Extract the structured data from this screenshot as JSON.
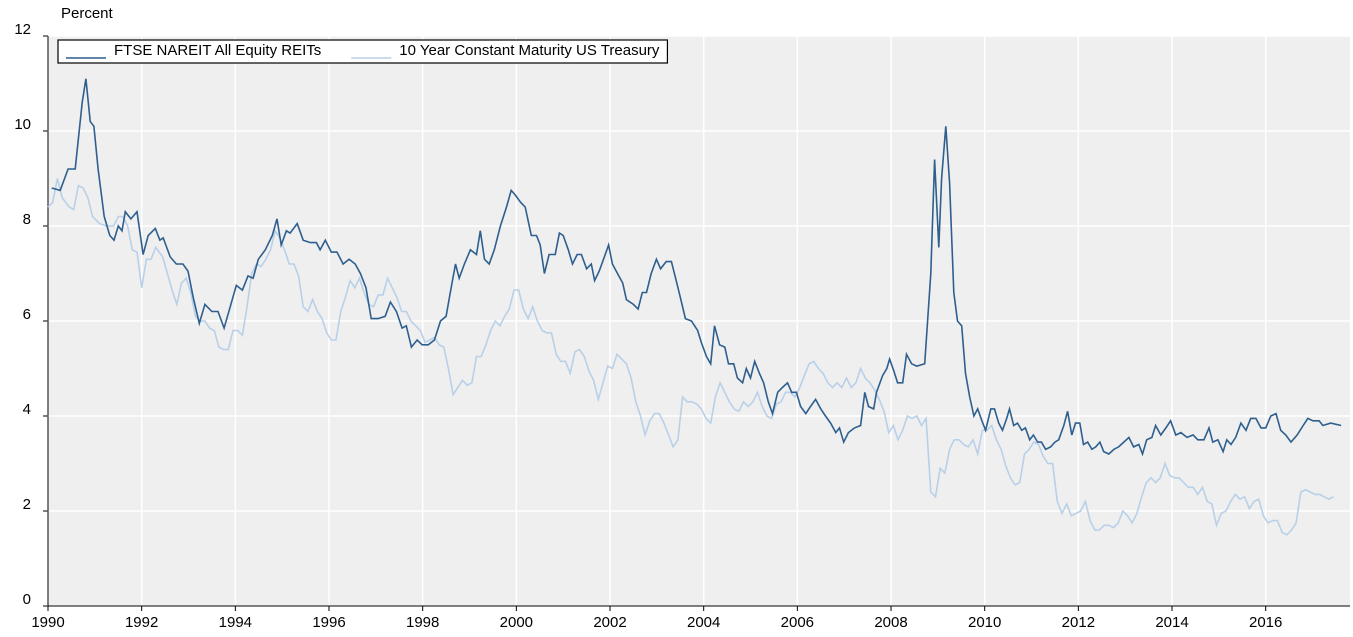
{
  "chart_data": {
    "type": "line",
    "y_label": "Percent",
    "xlim": [
      1990,
      2017.8
    ],
    "xticks": [
      1990,
      1992,
      1994,
      1996,
      1998,
      2000,
      2002,
      2004,
      2006,
      2008,
      2010,
      2012,
      2014,
      2016
    ],
    "ylim": [
      0,
      12
    ],
    "yticks": [
      0,
      2,
      4,
      6,
      8,
      10,
      12
    ],
    "grid": true,
    "legend": "top left",
    "series": [
      {
        "name": "FTSE NAREIT All Equity REITs",
        "color": "#2e5f8e",
        "x": [
          1990.08,
          1990.26,
          1990.43,
          1990.58,
          1990.73,
          1990.81,
          1990.9,
          1990.98,
          1991.07,
          1991.2,
          1991.32,
          1991.41,
          1991.5,
          1991.58,
          1991.65,
          1991.77,
          1991.9,
          1992.03,
          1992.14,
          1992.29,
          1992.39,
          1992.46,
          1992.61,
          1992.74,
          1992.88,
          1992.99,
          1993.1,
          1993.23,
          1993.35,
          1993.5,
          1993.63,
          1993.76,
          1993.89,
          1994.02,
          1994.15,
          1994.27,
          1994.38,
          1994.49,
          1994.64,
          1994.79,
          1994.89,
          1994.98,
          1995.09,
          1995.17,
          1995.32,
          1995.45,
          1995.6,
          1995.73,
          1995.81,
          1995.92,
          1996.05,
          1996.17,
          1996.3,
          1996.43,
          1996.56,
          1996.67,
          1996.79,
          1996.9,
          1997.05,
          1997.2,
          1997.31,
          1997.44,
          1997.56,
          1997.65,
          1997.76,
          1997.88,
          1997.99,
          1998.12,
          1998.25,
          1998.38,
          1998.5,
          1998.59,
          1998.7,
          1998.78,
          1998.89,
          1999.02,
          1999.15,
          1999.23,
          1999.32,
          1999.42,
          1999.53,
          1999.66,
          1999.79,
          1999.89,
          1999.98,
          2000.09,
          2000.19,
          2000.32,
          2000.43,
          2000.51,
          2000.6,
          2000.7,
          2000.83,
          2000.92,
          2001.0,
          2001.11,
          2001.2,
          2001.3,
          2001.39,
          2001.5,
          2001.6,
          2001.67,
          2001.77,
          2001.86,
          2001.97,
          2002.05,
          2002.16,
          2002.27,
          2002.35,
          2002.5,
          2002.6,
          2002.69,
          2002.78,
          2002.88,
          2002.99,
          2003.08,
          2003.2,
          2003.31,
          2003.4,
          2003.5,
          2003.61,
          2003.74,
          2003.87,
          2003.95,
          2004.06,
          2004.15,
          2004.23,
          2004.34,
          2004.45,
          2004.53,
          2004.64,
          2004.72,
          2004.83,
          2004.91,
          2005.0,
          2005.09,
          2005.19,
          2005.28,
          2005.38,
          2005.47,
          2005.58,
          2005.68,
          2005.79,
          2005.88,
          2005.98,
          2006.07,
          2006.18,
          2006.28,
          2006.39,
          2006.5,
          2006.6,
          2006.71,
          2006.82,
          2006.9,
          2006.99,
          2007.09,
          2007.22,
          2007.35,
          2007.44,
          2007.52,
          2007.63,
          2007.69,
          2007.82,
          2007.91,
          2007.97,
          2008.06,
          2008.14,
          2008.25,
          2008.33,
          2008.44,
          2008.55,
          2008.72,
          2008.85,
          2008.93,
          2009.02,
          2009.08,
          2009.17,
          2009.25,
          2009.34,
          2009.42,
          2009.51,
          2009.59,
          2009.68,
          2009.77,
          2009.85,
          2009.94,
          2010.02,
          2010.13,
          2010.21,
          2010.3,
          2010.38,
          2010.47,
          2010.53,
          2010.62,
          2010.7,
          2010.79,
          2010.87,
          2010.96,
          2011.04,
          2011.13,
          2011.21,
          2011.3,
          2011.41,
          2011.5,
          2011.58,
          2011.69,
          2011.77,
          2011.86,
          2011.94,
          2012.03,
          2012.11,
          2012.2,
          2012.29,
          2012.37,
          2012.46,
          2012.54,
          2012.65,
          2012.76,
          2012.86,
          2012.97,
          2013.08,
          2013.18,
          2013.29,
          2013.37,
          2013.46,
          2013.57,
          2013.65,
          2013.76,
          2013.87,
          2013.97,
          2014.08,
          2014.19,
          2014.32,
          2014.45,
          2014.55,
          2014.68,
          2014.79,
          2014.87,
          2014.98,
          2015.09,
          2015.17,
          2015.26,
          2015.36,
          2015.47,
          2015.58,
          2015.68,
          2015.79,
          2015.9,
          2016.0,
          2016.11,
          2016.22,
          2016.32,
          2016.43,
          2016.54,
          2016.67,
          2016.8,
          2016.9,
          2017.01,
          2017.14,
          2017.22,
          2017.39,
          2017.61
        ],
        "values": [
          8.8,
          8.75,
          9.2,
          9.2,
          10.6,
          11.1,
          10.2,
          10.1,
          9.2,
          8.2,
          7.8,
          7.7,
          8.0,
          7.9,
          8.3,
          8.15,
          8.3,
          7.4,
          7.8,
          7.95,
          7.7,
          7.75,
          7.35,
          7.2,
          7.2,
          7.05,
          6.5,
          5.95,
          6.35,
          6.2,
          6.2,
          5.85,
          6.3,
          6.75,
          6.65,
          6.95,
          6.9,
          7.3,
          7.5,
          7.8,
          8.15,
          7.6,
          7.9,
          7.85,
          8.05,
          7.7,
          7.65,
          7.65,
          7.5,
          7.7,
          7.45,
          7.45,
          7.2,
          7.3,
          7.2,
          7.0,
          6.7,
          6.05,
          6.05,
          6.1,
          6.4,
          6.2,
          5.85,
          5.9,
          5.45,
          5.6,
          5.5,
          5.5,
          5.6,
          6.0,
          6.1,
          6.6,
          7.2,
          6.9,
          7.2,
          7.5,
          7.4,
          7.9,
          7.3,
          7.2,
          7.5,
          8.0,
          8.4,
          8.75,
          8.65,
          8.5,
          8.4,
          7.8,
          7.8,
          7.6,
          7.0,
          7.4,
          7.4,
          7.85,
          7.8,
          7.5,
          7.2,
          7.4,
          7.4,
          7.1,
          7.2,
          6.85,
          7.05,
          7.3,
          7.6,
          7.2,
          7.0,
          6.8,
          6.45,
          6.35,
          6.25,
          6.6,
          6.6,
          7.0,
          7.3,
          7.1,
          7.25,
          7.25,
          6.9,
          6.5,
          6.05,
          6.0,
          5.8,
          5.55,
          5.25,
          5.1,
          5.9,
          5.5,
          5.45,
          5.1,
          5.1,
          4.8,
          4.7,
          5.0,
          4.8,
          5.15,
          4.9,
          4.7,
          4.3,
          4.05,
          4.5,
          4.6,
          4.7,
          4.5,
          4.5,
          4.2,
          4.05,
          4.2,
          4.35,
          4.15,
          4.0,
          3.85,
          3.65,
          3.75,
          3.45,
          3.65,
          3.75,
          3.8,
          4.5,
          4.2,
          4.15,
          4.5,
          4.85,
          5.0,
          5.2,
          4.95,
          4.7,
          4.7,
          5.3,
          5.1,
          5.05,
          5.1,
          7.0,
          9.4,
          7.55,
          9.0,
          10.1,
          8.9,
          6.6,
          6.0,
          5.9,
          4.9,
          4.4,
          4.0,
          4.15,
          3.9,
          3.7,
          4.15,
          4.15,
          3.85,
          3.7,
          3.95,
          4.15,
          3.8,
          3.85,
          3.7,
          3.75,
          3.5,
          3.6,
          3.45,
          3.45,
          3.3,
          3.35,
          3.45,
          3.5,
          3.8,
          4.1,
          3.6,
          3.85,
          3.85,
          3.4,
          3.45,
          3.3,
          3.35,
          3.45,
          3.25,
          3.2,
          3.3,
          3.35,
          3.45,
          3.55,
          3.35,
          3.4,
          3.2,
          3.5,
          3.55,
          3.8,
          3.6,
          3.75,
          3.9,
          3.6,
          3.65,
          3.55,
          3.6,
          3.5,
          3.5,
          3.75,
          3.45,
          3.5,
          3.25,
          3.5,
          3.4,
          3.55,
          3.85,
          3.7,
          3.95,
          3.95,
          3.75,
          3.75,
          4.0,
          4.05,
          3.7,
          3.6,
          3.45,
          3.6,
          3.8,
          3.95,
          3.9,
          3.9,
          3.8,
          3.85,
          3.8
        ]
      },
      {
        "name": "10 Year Constant Maturity US Treasury",
        "color": "#b8d0e8",
        "x": [
          1990.0,
          1990.1,
          1990.2,
          1990.3,
          1990.45,
          1990.55,
          1990.65,
          1990.75,
          1990.85,
          1990.95,
          1991.1,
          1991.25,
          1991.4,
          1991.5,
          1991.6,
          1991.7,
          1991.8,
          1991.9,
          1992.0,
          1992.1,
          1992.2,
          1992.3,
          1992.45,
          1992.55,
          1992.65,
          1992.75,
          1992.85,
          1992.95,
          1993.05,
          1993.15,
          1993.25,
          1993.35,
          1993.45,
          1993.55,
          1993.65,
          1993.75,
          1993.85,
          1993.95,
          1994.05,
          1994.15,
          1994.25,
          1994.35,
          1994.45,
          1994.55,
          1994.65,
          1994.75,
          1994.85,
          1994.95,
          1995.05,
          1995.15,
          1995.25,
          1995.35,
          1995.45,
          1995.55,
          1995.65,
          1995.75,
          1995.85,
          1995.95,
          1996.05,
          1996.15,
          1996.25,
          1996.35,
          1996.45,
          1996.55,
          1996.65,
          1996.75,
          1996.85,
          1996.95,
          1997.05,
          1997.15,
          1997.25,
          1997.35,
          1997.45,
          1997.55,
          1997.65,
          1997.75,
          1997.85,
          1997.95,
          1998.05,
          1998.15,
          1998.25,
          1998.35,
          1998.45,
          1998.55,
          1998.65,
          1998.75,
          1998.85,
          1998.95,
          1999.05,
          1999.15,
          1999.25,
          1999.35,
          1999.45,
          1999.55,
          1999.65,
          1999.75,
          1999.85,
          1999.95,
          2000.05,
          2000.15,
          2000.25,
          2000.35,
          2000.45,
          2000.55,
          2000.65,
          2000.75,
          2000.85,
          2000.95,
          2001.05,
          2001.15,
          2001.25,
          2001.35,
          2001.45,
          2001.55,
          2001.65,
          2001.75,
          2001.85,
          2001.95,
          2002.05,
          2002.15,
          2002.25,
          2002.35,
          2002.45,
          2002.55,
          2002.65,
          2002.75,
          2002.85,
          2002.95,
          2003.05,
          2003.15,
          2003.25,
          2003.35,
          2003.45,
          2003.55,
          2003.65,
          2003.75,
          2003.85,
          2003.95,
          2004.05,
          2004.15,
          2004.25,
          2004.35,
          2004.45,
          2004.55,
          2004.65,
          2004.75,
          2004.85,
          2004.95,
          2005.05,
          2005.15,
          2005.25,
          2005.35,
          2005.45,
          2005.55,
          2005.65,
          2005.75,
          2005.85,
          2005.95,
          2006.05,
          2006.15,
          2006.25,
          2006.35,
          2006.45,
          2006.55,
          2006.65,
          2006.75,
          2006.85,
          2006.95,
          2007.05,
          2007.15,
          2007.25,
          2007.35,
          2007.45,
          2007.55,
          2007.65,
          2007.75,
          2007.85,
          2007.95,
          2008.05,
          2008.15,
          2008.25,
          2008.35,
          2008.45,
          2008.55,
          2008.65,
          2008.75,
          2008.85,
          2008.95,
          2009.05,
          2009.15,
          2009.25,
          2009.35,
          2009.45,
          2009.55,
          2009.65,
          2009.75,
          2009.85,
          2009.95,
          2010.05,
          2010.15,
          2010.25,
          2010.35,
          2010.45,
          2010.55,
          2010.65,
          2010.75,
          2010.85,
          2010.95,
          2011.05,
          2011.15,
          2011.25,
          2011.35,
          2011.45,
          2011.55,
          2011.65,
          2011.75,
          2011.85,
          2011.95,
          2012.05,
          2012.15,
          2012.25,
          2012.35,
          2012.45,
          2012.55,
          2012.65,
          2012.75,
          2012.85,
          2012.95,
          2013.05,
          2013.15,
          2013.25,
          2013.35,
          2013.45,
          2013.55,
          2013.65,
          2013.75,
          2013.85,
          2013.95,
          2014.05,
          2014.15,
          2014.25,
          2014.35,
          2014.45,
          2014.55,
          2014.65,
          2014.75,
          2014.85,
          2014.95,
          2015.05,
          2015.15,
          2015.25,
          2015.35,
          2015.45,
          2015.55,
          2015.65,
          2015.75,
          2015.85,
          2015.95,
          2016.05,
          2016.15,
          2016.25,
          2016.35,
          2016.45,
          2016.55,
          2016.65,
          2016.75,
          2016.85,
          2016.95,
          2017.05,
          2017.15,
          2017.25,
          2017.35,
          2017.45
        ],
        "values": [
          8.4,
          8.5,
          9.0,
          8.6,
          8.4,
          8.35,
          8.85,
          8.8,
          8.6,
          8.2,
          8.05,
          8.0,
          8.0,
          8.2,
          8.2,
          8.0,
          7.5,
          7.45,
          6.7,
          7.3,
          7.3,
          7.55,
          7.35,
          7.0,
          6.65,
          6.35,
          6.8,
          6.9,
          6.6,
          6.1,
          6.0,
          6.0,
          5.85,
          5.8,
          5.45,
          5.4,
          5.4,
          5.8,
          5.8,
          5.7,
          6.3,
          7.0,
          7.2,
          7.15,
          7.3,
          7.5,
          7.9,
          7.75,
          7.5,
          7.2,
          7.2,
          6.95,
          6.3,
          6.2,
          6.45,
          6.2,
          6.05,
          5.75,
          5.6,
          5.6,
          6.2,
          6.5,
          6.85,
          6.7,
          6.9,
          6.6,
          6.35,
          6.3,
          6.55,
          6.55,
          6.9,
          6.7,
          6.5,
          6.2,
          6.2,
          6.0,
          5.9,
          5.8,
          5.55,
          5.6,
          5.65,
          5.5,
          5.45,
          5.0,
          4.45,
          4.6,
          4.75,
          4.65,
          4.7,
          5.25,
          5.25,
          5.5,
          5.8,
          6.0,
          5.9,
          6.1,
          6.25,
          6.65,
          6.65,
          6.25,
          6.05,
          6.3,
          6.0,
          5.8,
          5.75,
          5.75,
          5.3,
          5.15,
          5.15,
          4.9,
          5.35,
          5.4,
          5.25,
          4.95,
          4.75,
          4.35,
          4.7,
          5.05,
          5.0,
          5.3,
          5.2,
          5.1,
          4.8,
          4.3,
          4.0,
          3.6,
          3.9,
          4.05,
          4.05,
          3.85,
          3.6,
          3.35,
          3.5,
          4.4,
          4.3,
          4.3,
          4.25,
          4.15,
          3.95,
          3.85,
          4.4,
          4.7,
          4.5,
          4.3,
          4.15,
          4.1,
          4.3,
          4.2,
          4.3,
          4.5,
          4.2,
          4.0,
          3.95,
          4.25,
          4.3,
          4.5,
          4.5,
          4.4,
          4.6,
          4.85,
          5.1,
          5.15,
          5.0,
          4.9,
          4.7,
          4.6,
          4.7,
          4.6,
          4.8,
          4.6,
          4.7,
          5.0,
          4.8,
          4.7,
          4.55,
          4.35,
          4.1,
          3.65,
          3.8,
          3.5,
          3.7,
          4.0,
          3.95,
          4.0,
          3.8,
          3.95,
          2.4,
          2.3,
          2.9,
          2.8,
          3.3,
          3.5,
          3.5,
          3.4,
          3.35,
          3.5,
          3.2,
          3.7,
          3.7,
          3.8,
          3.5,
          3.3,
          2.95,
          2.7,
          2.55,
          2.6,
          3.2,
          3.3,
          3.45,
          3.4,
          3.15,
          3.0,
          3.0,
          2.2,
          1.95,
          2.15,
          1.9,
          1.95,
          2.0,
          2.2,
          1.8,
          1.6,
          1.6,
          1.7,
          1.7,
          1.65,
          1.75,
          2.0,
          1.9,
          1.75,
          1.95,
          2.3,
          2.6,
          2.7,
          2.6,
          2.7,
          3.0,
          2.75,
          2.7,
          2.7,
          2.6,
          2.5,
          2.5,
          2.35,
          2.5,
          2.2,
          2.15,
          1.7,
          1.95,
          2.0,
          2.2,
          2.35,
          2.25,
          2.3,
          2.05,
          2.2,
          2.25,
          1.9,
          1.75,
          1.8,
          1.8,
          1.55,
          1.5,
          1.6,
          1.75,
          2.4,
          2.45,
          2.4,
          2.35,
          2.35,
          2.3,
          2.25,
          2.3
        ]
      }
    ]
  }
}
